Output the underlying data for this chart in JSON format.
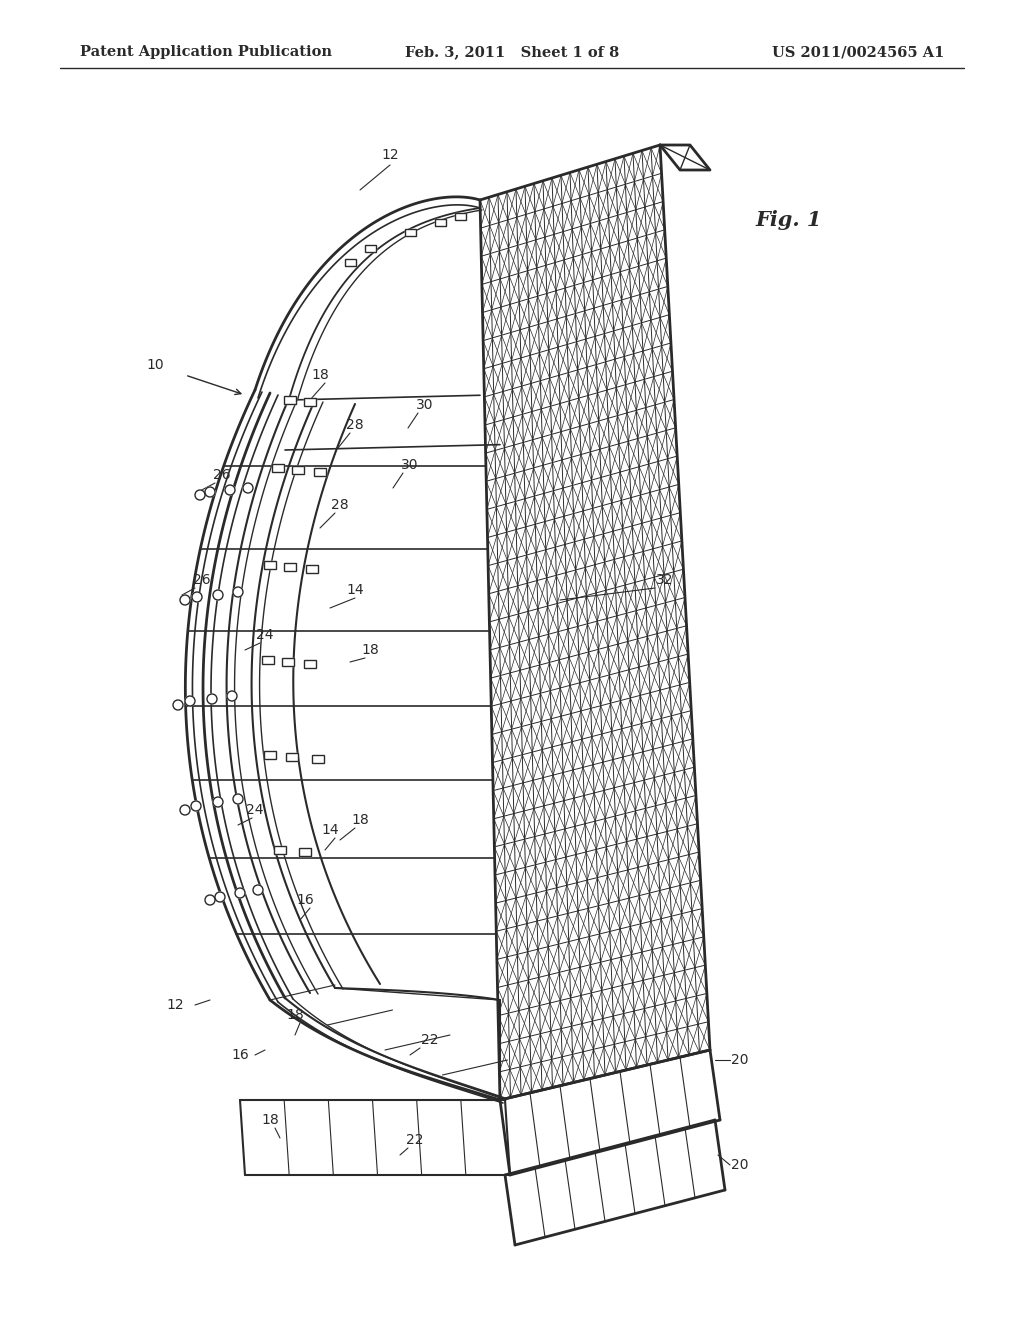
{
  "title_left": "Patent Application Publication",
  "title_mid": "Feb. 3, 2011   Sheet 1 of 8",
  "title_right": "US 2011/0024565 A1",
  "fig_label": "Fig. 1",
  "background_color": "#ffffff",
  "line_color": "#2a2a2a",
  "header_fontsize": 10.5,
  "label_fontsize": 10,
  "fig_label_fontsize": 15
}
